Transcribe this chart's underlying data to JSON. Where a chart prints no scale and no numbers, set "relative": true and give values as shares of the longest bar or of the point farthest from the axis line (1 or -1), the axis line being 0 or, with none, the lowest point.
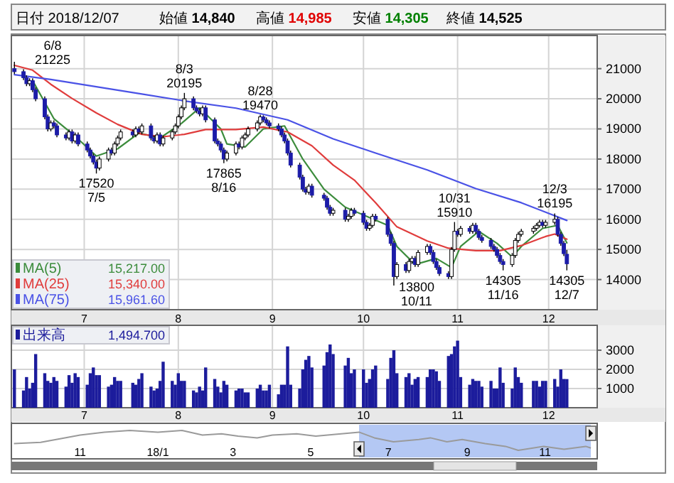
{
  "chart_data": [
    {
      "type": "other",
      "annotations": [
        "日付 2018/12/07",
        "始値 14,840",
        "高値 14,985",
        "安値 14,305",
        "終値 14,525"
      ]
    },
    {
      "type": "candlestick",
      "xlim": [
        "2018-06-07",
        "2018-12-17"
      ],
      "ylim": [
        13000,
        22100
      ],
      "yticks": [
        14000,
        15000,
        16000,
        17000,
        18000,
        19000,
        20000,
        21000
      ],
      "xticks": [
        {
          "value": "2018-07-01",
          "label": "7"
        },
        {
          "value": "2018-08-01",
          "label": "8"
        },
        {
          "value": "2018-09-01",
          "label": "9"
        },
        {
          "value": "2018-10-01",
          "label": "10"
        },
        {
          "value": "2018-11-01",
          "label": "11"
        },
        {
          "value": "2018-12-01",
          "label": "12"
        }
      ],
      "grid": true,
      "legend": "bottom left",
      "x": [
        "2018-06-08",
        "2018-06-11",
        "2018-06-12",
        "2018-06-13",
        "2018-06-14",
        "2018-06-15",
        "2018-06-18",
        "2018-06-19",
        "2018-06-20",
        "2018-06-21",
        "2018-06-22",
        "2018-06-25",
        "2018-06-26",
        "2018-06-27",
        "2018-06-28",
        "2018-06-29",
        "2018-07-02",
        "2018-07-03",
        "2018-07-04",
        "2018-07-05",
        "2018-07-06",
        "2018-07-09",
        "2018-07-10",
        "2018-07-11",
        "2018-07-12",
        "2018-07-13",
        "2018-07-17",
        "2018-07-18",
        "2018-07-19",
        "2018-07-20",
        "2018-07-23",
        "2018-07-24",
        "2018-07-25",
        "2018-07-26",
        "2018-07-27",
        "2018-07-30",
        "2018-07-31",
        "2018-08-01",
        "2018-08-02",
        "2018-08-03",
        "2018-08-06",
        "2018-08-07",
        "2018-08-08",
        "2018-08-09",
        "2018-08-10",
        "2018-08-13",
        "2018-08-14",
        "2018-08-15",
        "2018-08-16",
        "2018-08-17",
        "2018-08-20",
        "2018-08-21",
        "2018-08-22",
        "2018-08-23",
        "2018-08-24",
        "2018-08-27",
        "2018-08-28",
        "2018-08-29",
        "2018-08-30",
        "2018-08-31",
        "2018-09-03",
        "2018-09-04",
        "2018-09-05",
        "2018-09-06",
        "2018-09-07",
        "2018-09-10",
        "2018-09-11",
        "2018-09-12",
        "2018-09-13",
        "2018-09-14",
        "2018-09-18",
        "2018-09-19",
        "2018-09-20",
        "2018-09-21",
        "2018-09-25",
        "2018-09-26",
        "2018-09-27",
        "2018-09-28",
        "2018-10-01",
        "2018-10-02",
        "2018-10-03",
        "2018-10-04",
        "2018-10-05",
        "2018-10-09",
        "2018-10-10",
        "2018-10-11",
        "2018-10-12",
        "2018-10-15",
        "2018-10-16",
        "2018-10-17",
        "2018-10-18",
        "2018-10-19",
        "2018-10-22",
        "2018-10-23",
        "2018-10-24",
        "2018-10-25",
        "2018-10-26",
        "2018-10-29",
        "2018-10-30",
        "2018-10-31",
        "2018-11-01",
        "2018-11-02",
        "2018-11-05",
        "2018-11-06",
        "2018-11-07",
        "2018-11-08",
        "2018-11-09",
        "2018-11-12",
        "2018-11-13",
        "2018-11-14",
        "2018-11-15",
        "2018-11-16",
        "2018-11-19",
        "2018-11-20",
        "2018-11-21",
        "2018-11-22",
        "2018-11-26",
        "2018-11-27",
        "2018-11-28",
        "2018-11-29",
        "2018-11-30",
        "2018-12-03",
        "2018-12-04",
        "2018-12-05",
        "2018-12-06",
        "2018-12-07"
      ],
      "ohlc": [
        [
          21000,
          21225,
          20820,
          20900
        ],
        [
          20900,
          20980,
          20620,
          20700
        ],
        [
          20700,
          20780,
          20420,
          20500
        ],
        [
          20500,
          20680,
          20420,
          20600
        ],
        [
          20600,
          20680,
          20220,
          20300
        ],
        [
          20300,
          20380,
          19920,
          20000
        ],
        [
          20000,
          20080,
          19320,
          19400
        ],
        [
          19400,
          19480,
          18920,
          19000
        ],
        [
          19000,
          19280,
          18920,
          19200
        ],
        [
          19200,
          19280,
          19020,
          19100
        ],
        [
          19100,
          19180,
          18720,
          18800
        ],
        [
          18800,
          18880,
          18620,
          18700
        ],
        [
          18700,
          18980,
          18620,
          18900
        ],
        [
          18900,
          18980,
          18520,
          18600
        ],
        [
          18600,
          18880,
          18520,
          18800
        ],
        [
          18800,
          18880,
          18420,
          18500
        ],
        [
          18500,
          18580,
          18220,
          18300
        ],
        [
          18300,
          18380,
          18020,
          18100
        ],
        [
          18100,
          18180,
          17820,
          17900
        ],
        [
          17900,
          17980,
          17520,
          17700
        ],
        [
          17700,
          18080,
          17620,
          18000
        ],
        [
          18000,
          18380,
          17920,
          18300
        ],
        [
          18300,
          18380,
          18120,
          18200
        ],
        [
          18200,
          18580,
          18120,
          18500
        ],
        [
          18500,
          18780,
          18420,
          18700
        ],
        [
          18700,
          18980,
          18620,
          18900
        ],
        [
          18900,
          18980,
          18720,
          18800
        ],
        [
          18800,
          19080,
          18720,
          19000
        ],
        [
          19000,
          19080,
          18820,
          18900
        ],
        [
          18900,
          19180,
          18820,
          19100
        ],
        [
          19100,
          19180,
          18620,
          18700
        ],
        [
          18700,
          18780,
          18520,
          18600
        ],
        [
          18600,
          18880,
          18520,
          18800
        ],
        [
          18800,
          18880,
          18420,
          18500
        ],
        [
          18500,
          18780,
          18420,
          18700
        ],
        [
          18700,
          18980,
          18620,
          18900
        ],
        [
          18900,
          19180,
          18820,
          19100
        ],
        [
          19100,
          19480,
          19020,
          19400
        ],
        [
          19400,
          19780,
          19320,
          19700
        ],
        [
          19700,
          20195,
          19620,
          20000
        ],
        [
          20000,
          20080,
          19620,
          19700
        ],
        [
          19700,
          19780,
          19520,
          19600
        ],
        [
          19600,
          19680,
          19420,
          19500
        ],
        [
          19500,
          19780,
          19420,
          19700
        ],
        [
          19700,
          19780,
          19220,
          19300
        ],
        [
          19300,
          19380,
          18520,
          18600
        ],
        [
          18600,
          18680,
          18420,
          18500
        ],
        [
          18500,
          18580,
          18220,
          18300
        ],
        [
          18300,
          18380,
          17865,
          18000
        ],
        [
          18000,
          18280,
          17920,
          18200
        ],
        [
          18200,
          18580,
          18120,
          18500
        ],
        [
          18500,
          18580,
          18320,
          18400
        ],
        [
          18400,
          18780,
          18320,
          18700
        ],
        [
          18700,
          18880,
          18620,
          18800
        ],
        [
          18800,
          19080,
          18720,
          19000
        ],
        [
          19000,
          19280,
          18920,
          19200
        ],
        [
          19200,
          19470,
          19120,
          19400
        ],
        [
          19400,
          19450,
          19220,
          19300
        ],
        [
          19300,
          19380,
          19120,
          19200
        ],
        [
          19200,
          19280,
          19020,
          19100
        ],
        [
          19100,
          19180,
          18920,
          19000
        ],
        [
          19000,
          19080,
          18720,
          18800
        ],
        [
          18800,
          18880,
          18520,
          18600
        ],
        [
          18600,
          18680,
          18120,
          18200
        ],
        [
          18200,
          18280,
          17720,
          17800
        ],
        [
          17800,
          17880,
          17320,
          17400
        ],
        [
          17400,
          17480,
          16920,
          17000
        ],
        [
          17000,
          17080,
          16820,
          16900
        ],
        [
          16900,
          17180,
          16820,
          17100
        ],
        [
          17100,
          17180,
          16720,
          16800
        ],
        [
          16800,
          16880,
          16620,
          16700
        ],
        [
          16700,
          16780,
          16320,
          16400
        ],
        [
          16400,
          16480,
          16120,
          16200
        ],
        [
          16200,
          16380,
          16120,
          16300
        ],
        [
          16300,
          16380,
          15920,
          16000
        ],
        [
          16000,
          16180,
          15920,
          16100
        ],
        [
          16100,
          16380,
          16020,
          16300
        ],
        [
          16300,
          16380,
          16120,
          16200
        ],
        [
          16200,
          16280,
          15820,
          15900
        ],
        [
          15900,
          15980,
          15620,
          15700
        ],
        [
          15700,
          15880,
          15620,
          15800
        ],
        [
          15800,
          16180,
          15720,
          16100
        ],
        [
          16100,
          16180,
          15920,
          16000
        ],
        [
          16000,
          16080,
          15420,
          15500
        ],
        [
          15500,
          15580,
          15120,
          15200
        ],
        [
          15200,
          15280,
          13800,
          14100
        ],
        [
          14100,
          14580,
          14020,
          14500
        ],
        [
          14500,
          14580,
          14220,
          14300
        ],
        [
          14300,
          14680,
          14220,
          14600
        ],
        [
          14600,
          14780,
          14520,
          14700
        ],
        [
          14700,
          14780,
          14420,
          14500
        ],
        [
          14500,
          14980,
          14420,
          14900
        ],
        [
          14900,
          15180,
          14820,
          15100
        ],
        [
          15100,
          15180,
          14820,
          14900
        ],
        [
          14900,
          14980,
          14520,
          14600
        ],
        [
          14600,
          14680,
          14320,
          14400
        ],
        [
          14400,
          14480,
          14120,
          14200
        ],
        [
          14200,
          14280,
          14020,
          14100
        ],
        [
          14100,
          15080,
          14020,
          15000
        ],
        [
          15000,
          15910,
          14920,
          15600
        ],
        [
          15600,
          15680,
          15420,
          15500
        ],
        [
          15500,
          15780,
          15420,
          15700
        ],
        [
          15700,
          15780,
          15520,
          15600
        ],
        [
          15600,
          15880,
          15520,
          15800
        ],
        [
          15800,
          15880,
          15520,
          15600
        ],
        [
          15600,
          15680,
          15320,
          15400
        ],
        [
          15400,
          15480,
          15220,
          15300
        ],
        [
          15300,
          15380,
          15020,
          15100
        ],
        [
          15100,
          15180,
          14920,
          15000
        ],
        [
          15000,
          15080,
          14720,
          14800
        ],
        [
          14800,
          14880,
          14520,
          14600
        ],
        [
          14600,
          14680,
          14305,
          14500
        ],
        [
          14500,
          14880,
          14420,
          14800
        ],
        [
          14800,
          15380,
          14720,
          15300
        ],
        [
          15300,
          15580,
          15220,
          15500
        ],
        [
          15500,
          15680,
          15420,
          15600
        ],
        [
          15600,
          15780,
          15520,
          15700
        ],
        [
          15700,
          15880,
          15620,
          15800
        ],
        [
          15800,
          15980,
          15720,
          15900
        ],
        [
          15900,
          15980,
          15720,
          15800
        ],
        [
          15800,
          15980,
          15720,
          15900
        ],
        [
          15900,
          16195,
          15820,
          16000
        ],
        [
          16000,
          16080,
          15420,
          15500
        ],
        [
          15500,
          15580,
          15120,
          15200
        ],
        [
          15200,
          15280,
          14780,
          14860
        ],
        [
          14840,
          14985,
          14305,
          14525
        ]
      ],
      "series": [
        {
          "name": "MA(5)",
          "type": "line",
          "color": "#3c8c3c",
          "x": [
            "2018-06-14",
            "2018-06-21",
            "2018-06-28",
            "2018-07-05",
            "2018-07-12",
            "2018-07-19",
            "2018-07-26",
            "2018-08-02",
            "2018-08-08",
            "2018-08-15",
            "2018-08-17",
            "2018-08-23",
            "2018-08-29",
            "2018-09-05",
            "2018-09-11",
            "2018-09-18",
            "2018-09-25",
            "2018-10-02",
            "2018-10-09",
            "2018-10-12",
            "2018-10-18",
            "2018-10-25",
            "2018-10-30",
            "2018-11-02",
            "2018-11-08",
            "2018-11-14",
            "2018-11-19",
            "2018-11-22",
            "2018-11-29",
            "2018-12-04",
            "2018-12-07"
          ],
          "values": [
            20600,
            19340,
            18760,
            18100,
            18340,
            18860,
            18700,
            19180,
            19700,
            19000,
            18500,
            18400,
            19000,
            19100,
            18000,
            17000,
            16400,
            16100,
            15800,
            15100,
            14500,
            14700,
            14400,
            15100,
            15600,
            15200,
            14750,
            15100,
            15700,
            15800,
            15217
          ]
        },
        {
          "name": "MA(25)",
          "type": "line",
          "color": "#e03c3c",
          "x": [
            "2018-06-08",
            "2018-06-14",
            "2018-06-20",
            "2018-06-27",
            "2018-07-05",
            "2018-07-12",
            "2018-07-20",
            "2018-07-27",
            "2018-08-03",
            "2018-08-10",
            "2018-08-20",
            "2018-08-29",
            "2018-09-06",
            "2018-09-14",
            "2018-09-21",
            "2018-09-28",
            "2018-10-05",
            "2018-10-12",
            "2018-10-22",
            "2018-10-29",
            "2018-11-07",
            "2018-11-15",
            "2018-11-22",
            "2018-11-30",
            "2018-12-03",
            "2018-12-07"
          ],
          "values": [
            21110,
            20950,
            20480,
            20010,
            19530,
            19150,
            18820,
            18740,
            18820,
            18980,
            18980,
            19060,
            18900,
            18440,
            17800,
            17300,
            16550,
            15750,
            15280,
            15040,
            14960,
            14960,
            15130,
            15430,
            15510,
            15340
          ]
        },
        {
          "name": "MA(75)",
          "type": "line",
          "color": "#4a52e6",
          "x": [
            "2018-06-08",
            "2018-06-20",
            "2018-07-05",
            "2018-07-20",
            "2018-08-03",
            "2018-08-20",
            "2018-09-06",
            "2018-09-21",
            "2018-10-05",
            "2018-10-22",
            "2018-11-07",
            "2018-11-22",
            "2018-12-07"
          ],
          "values": [
            20800,
            20640,
            20400,
            20160,
            19930,
            19690,
            19300,
            18670,
            18200,
            17640,
            17020,
            16550,
            15961.6
          ]
        }
      ],
      "annotations": [
        {
          "text": "6/8\n21225",
          "x": "2018-06-08",
          "y": 21225
        },
        {
          "text": "17520\n7/5",
          "x": "2018-07-05",
          "y": 17520
        },
        {
          "text": "8/3\n20195",
          "x": "2018-08-03",
          "y": 20195
        },
        {
          "text": "17865\n8/16",
          "x": "2018-08-16",
          "y": 17865
        },
        {
          "text": "8/28\n19470",
          "x": "2018-08-28",
          "y": 19470
        },
        {
          "text": "13800\n10/11",
          "x": "2018-10-11",
          "y": 13800
        },
        {
          "text": "10/31\n15910",
          "x": "2018-10-31",
          "y": 15910
        },
        {
          "text": "14305\n11/16",
          "x": "2018-11-16",
          "y": 14305
        },
        {
          "text": "12/3\n16195",
          "x": "2018-12-03",
          "y": 16195
        },
        {
          "text": "14305\n12/7",
          "x": "2018-12-07",
          "y": 14305
        },
        "15,217.00",
        "15,340.00",
        "15,961.60"
      ]
    },
    {
      "type": "bar",
      "xlim": [
        "2018-06-07",
        "2018-12-17"
      ],
      "ylim": [
        0,
        4300
      ],
      "yticks": [
        1000,
        2000,
        3000
      ],
      "xticks": [
        {
          "value": "2018-07-01",
          "label": "7"
        },
        {
          "value": "2018-08-01",
          "label": "8"
        },
        {
          "value": "2018-09-01",
          "label": "9"
        },
        {
          "value": "2018-10-01",
          "label": "10"
        },
        {
          "value": "2018-11-01",
          "label": "11"
        },
        {
          "value": "2018-12-01",
          "label": "12"
        }
      ],
      "grid": true,
      "legend": "top left",
      "annotations": [
        "1,494.700"
      ],
      "x": [
        "2018-06-08",
        "2018-06-11",
        "2018-06-12",
        "2018-06-13",
        "2018-06-14",
        "2018-06-15",
        "2018-06-18",
        "2018-06-19",
        "2018-06-20",
        "2018-06-21",
        "2018-06-22",
        "2018-06-25",
        "2018-06-26",
        "2018-06-27",
        "2018-06-28",
        "2018-06-29",
        "2018-07-02",
        "2018-07-03",
        "2018-07-04",
        "2018-07-05",
        "2018-07-06",
        "2018-07-09",
        "2018-07-10",
        "2018-07-11",
        "2018-07-12",
        "2018-07-13",
        "2018-07-17",
        "2018-07-18",
        "2018-07-19",
        "2018-07-20",
        "2018-07-23",
        "2018-07-24",
        "2018-07-25",
        "2018-07-26",
        "2018-07-27",
        "2018-07-30",
        "2018-07-31",
        "2018-08-01",
        "2018-08-02",
        "2018-08-03",
        "2018-08-06",
        "2018-08-07",
        "2018-08-08",
        "2018-08-09",
        "2018-08-10",
        "2018-08-13",
        "2018-08-14",
        "2018-08-15",
        "2018-08-16",
        "2018-08-17",
        "2018-08-20",
        "2018-08-21",
        "2018-08-22",
        "2018-08-23",
        "2018-08-24",
        "2018-08-27",
        "2018-08-28",
        "2018-08-29",
        "2018-08-30",
        "2018-08-31",
        "2018-09-03",
        "2018-09-04",
        "2018-09-05",
        "2018-09-06",
        "2018-09-07",
        "2018-09-10",
        "2018-09-11",
        "2018-09-12",
        "2018-09-13",
        "2018-09-14",
        "2018-09-18",
        "2018-09-19",
        "2018-09-20",
        "2018-09-21",
        "2018-09-25",
        "2018-09-26",
        "2018-09-27",
        "2018-09-28",
        "2018-10-01",
        "2018-10-02",
        "2018-10-03",
        "2018-10-04",
        "2018-10-05",
        "2018-10-09",
        "2018-10-10",
        "2018-10-11",
        "2018-10-12",
        "2018-10-15",
        "2018-10-16",
        "2018-10-17",
        "2018-10-18",
        "2018-10-19",
        "2018-10-22",
        "2018-10-23",
        "2018-10-24",
        "2018-10-25",
        "2018-10-26",
        "2018-10-29",
        "2018-10-30",
        "2018-10-31",
        "2018-11-01",
        "2018-11-02",
        "2018-11-05",
        "2018-11-06",
        "2018-11-07",
        "2018-11-08",
        "2018-11-09",
        "2018-11-12",
        "2018-11-13",
        "2018-11-14",
        "2018-11-15",
        "2018-11-16",
        "2018-11-19",
        "2018-11-20",
        "2018-11-21",
        "2018-11-22",
        "2018-11-26",
        "2018-11-27",
        "2018-11-28",
        "2018-11-29",
        "2018-11-30",
        "2018-12-03",
        "2018-12-04",
        "2018-12-05",
        "2018-12-06",
        "2018-12-07"
      ],
      "series": [
        {
          "name": "出来高",
          "color": "#1c1c9c",
          "values": [
            2000,
            900,
            1600,
            1000,
            1300,
            2800,
            1800,
            1400,
            1300,
            1600,
            1400,
            1100,
            1700,
            1300,
            1800,
            1600,
            1200,
            1800,
            2100,
            1700,
            1700,
            1100,
            1200,
            1600,
            1400,
            1400,
            1300,
            1200,
            1500,
            1800,
            1100,
            900,
            1000,
            1400,
            2400,
            1400,
            1200,
            1800,
            1400,
            1400,
            900,
            800,
            1100,
            900,
            2100,
            1500,
            1100,
            800,
            1400,
            1200,
            900,
            1000,
            1000,
            800,
            800,
            1000,
            1200,
            900,
            900,
            1200,
            700,
            1200,
            1200,
            3200,
            1200,
            1000,
            2000,
            2500,
            2700,
            2100,
            2200,
            2900,
            3300,
            2800,
            2200,
            2600,
            1800,
            2000,
            2000,
            1300,
            1500,
            2000,
            2200,
            1500,
            2600,
            3000,
            1800,
            1600,
            1800,
            1200,
            1500,
            1600,
            1600,
            2000,
            2000,
            1900,
            1400,
            2700,
            2800,
            3200,
            3500,
            1600,
            1200,
            1500,
            1400,
            1400,
            1100,
            1400,
            1000,
            1000,
            2100,
            1300,
            1000,
            2100,
            1600,
            1300,
            1400,
            1400,
            1100,
            1400,
            1400,
            1500,
            1100,
            2000,
            1500,
            1494.7
          ]
        }
      ]
    },
    {
      "type": "line",
      "relative": true,
      "color": "#9a9a9a",
      "xlim": [
        "2017-09-08",
        "2018-12-12"
      ],
      "xticks": [
        {
          "value": "2017-11-01",
          "label": "11"
        },
        {
          "value": "2018-01-01",
          "label": "18/1"
        },
        {
          "value": "2018-03-01",
          "label": "3"
        },
        {
          "value": "2018-05-01",
          "label": "5"
        },
        {
          "value": "2018-07-01",
          "label": "7"
        },
        {
          "value": "2018-09-01",
          "label": "9"
        },
        {
          "value": "2018-11-01",
          "label": "11"
        }
      ],
      "bands": [
        {
          "axis": "x",
          "from": "2018-06-08",
          "to": "2018-12-07",
          "color": "#b4c8f4"
        }
      ],
      "x": [
        "2017-09-10",
        "2017-10-01",
        "2017-10-20",
        "2017-11-01",
        "2017-11-20",
        "2017-12-10",
        "2018-01-01",
        "2018-01-20",
        "2018-02-05",
        "2018-02-20",
        "2018-03-05",
        "2018-03-20",
        "2018-04-01",
        "2018-04-20",
        "2018-05-05",
        "2018-05-25",
        "2018-06-08",
        "2018-06-20",
        "2018-07-05",
        "2018-07-25",
        "2018-08-03",
        "2018-08-16",
        "2018-08-28",
        "2018-09-15",
        "2018-10-01",
        "2018-10-11",
        "2018-10-31",
        "2018-11-16",
        "2018-12-03",
        "2018-12-07"
      ],
      "values": [
        0.54,
        0.58,
        0.74,
        0.84,
        0.94,
        1,
        0.94,
        1,
        0.84,
        0.88,
        0.8,
        0.74,
        0.84,
        0.88,
        0.8,
        0.88,
        0.94,
        0.74,
        0.6,
        0.68,
        0.74,
        0.6,
        0.68,
        0.54,
        0.44,
        0.3,
        0.44,
        0.34,
        0.44,
        0.38
      ]
    }
  ]
}
